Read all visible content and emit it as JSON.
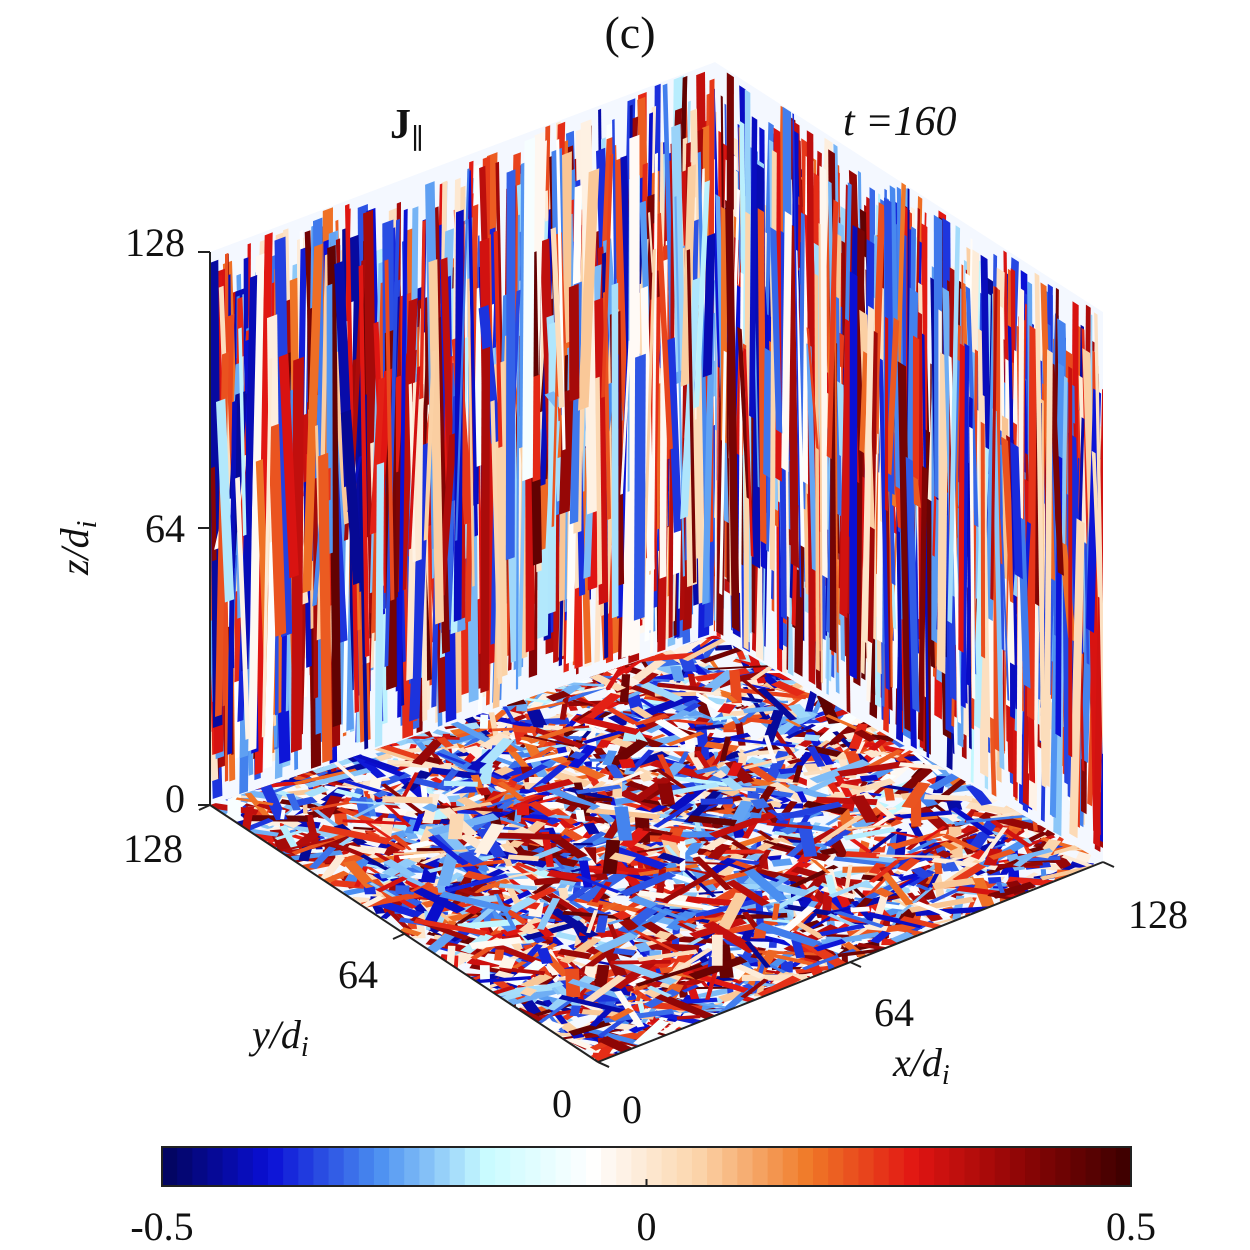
{
  "chart_data": {
    "type": "heatmap",
    "panel_label": "(c)",
    "field_label": "J",
    "field_subscript": "∥",
    "time_label": "t =160",
    "axes": {
      "x": {
        "label_main": "x/d",
        "label_sub": "i",
        "range": [
          0,
          128
        ],
        "ticks": [
          "0",
          "64",
          "128"
        ]
      },
      "y": {
        "label_main": "y/d",
        "label_sub": "i",
        "range": [
          0,
          128
        ],
        "ticks": [
          "0",
          "64",
          "128"
        ]
      },
      "z": {
        "label_main": "z/d",
        "label_sub": "i",
        "range": [
          0,
          128
        ],
        "ticks": [
          "0",
          "64",
          "128"
        ]
      }
    },
    "colorbar": {
      "range": [
        -0.5,
        0.5
      ],
      "ticks": [
        "-0.5",
        "0",
        "0.5"
      ],
      "colormap": [
        "#03045a",
        "#0a0fd6",
        "#4a8ef0",
        "#c8fbff",
        "#ffffff",
        "#fbd3a8",
        "#f07a28",
        "#e11512",
        "#8c0505",
        "#3a0000"
      ]
    },
    "faces": [
      "back-left wall (y = 128)",
      "back-right wall (x = 128)",
      "floor (z = 0)"
    ]
  }
}
